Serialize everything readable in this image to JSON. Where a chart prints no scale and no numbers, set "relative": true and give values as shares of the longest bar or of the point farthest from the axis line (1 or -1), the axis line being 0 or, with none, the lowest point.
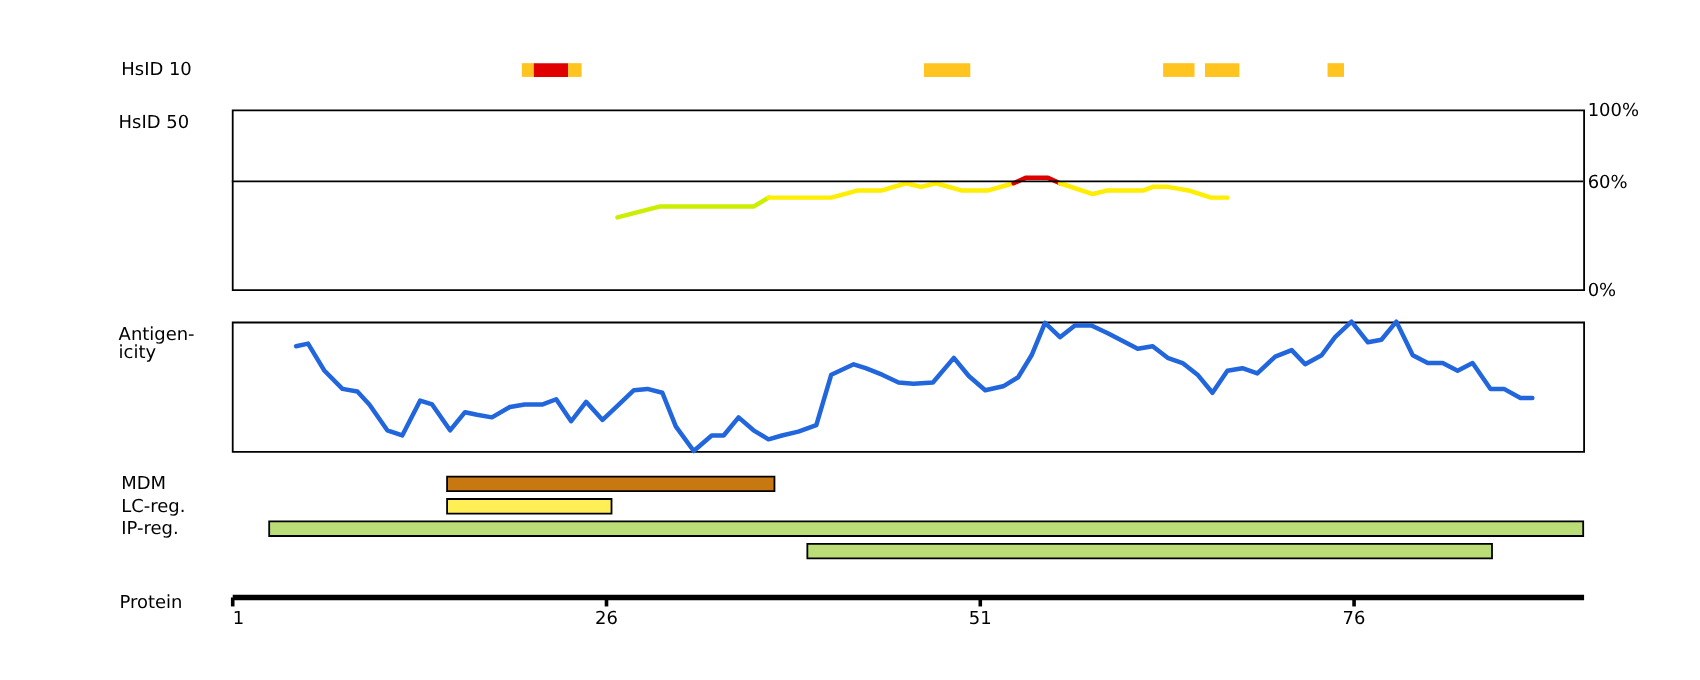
{
  "chart_data": [
    {
      "type": "bar",
      "orientation": "horizontal",
      "categories": [
        "HsID 10"
      ],
      "xlim": [
        1,
        91.4
      ],
      "tick_labels": "y",
      "series": [
        {
          "color": "#ffc420",
          "base": [
            20.4
          ],
          "values": [
            0.8
          ]
        },
        {
          "color": "#e00000",
          "base": [
            21.2
          ],
          "values": [
            2.3
          ]
        },
        {
          "color": "#ffc420",
          "base": [
            23.5
          ],
          "values": [
            0.9
          ]
        },
        {
          "color": "#ffc420",
          "base": [
            47.3
          ],
          "values": [
            3.1
          ]
        },
        {
          "color": "#ffc420",
          "base": [
            63.3
          ],
          "values": [
            2.1
          ]
        },
        {
          "color": "#ffc420",
          "base": [
            66.1
          ],
          "values": [
            2.3
          ]
        },
        {
          "color": "#ffc420",
          "base": [
            74.3
          ],
          "values": [
            1.1
          ]
        }
      ]
    },
    {
      "type": "line",
      "ylabel": "HsID 50",
      "xlim": [
        1,
        91.4
      ],
      "ylim": [
        0,
        100
      ],
      "yticks": [
        {
          "value": 100,
          "label": "100%"
        },
        {
          "value": 60,
          "label": "60%"
        },
        {
          "value": 0,
          "label": "0%"
        }
      ],
      "tick_labels": "y",
      "ref_lines": [
        {
          "axis": "y",
          "value": 60,
          "color": "#000000"
        }
      ],
      "series": [
        {
          "color": "#ccee00",
          "x": [
            26.8,
            29.6,
            35.9,
            36.9
          ],
          "values": [
            40,
            46,
            46,
            51
          ]
        },
        {
          "color": "#ffee00",
          "x": [
            36.9,
            41.1,
            42.9,
            44.5,
            46.1,
            47.1,
            48.1,
            49.8,
            51.6,
            53.3
          ],
          "values": [
            51,
            51,
            55,
            55,
            59,
            57,
            59,
            55,
            55,
            59
          ]
        },
        {
          "color": "#dd0000",
          "x": [
            53.3,
            54.1,
            55.6,
            56.4
          ],
          "values": [
            59,
            62,
            62,
            59
          ]
        },
        {
          "color": "#ffee00",
          "x": [
            56.4,
            58.6,
            59.6,
            62,
            62.6,
            63.6,
            65,
            66.5,
            67.6
          ],
          "values": [
            59,
            53,
            55,
            55,
            57,
            57,
            55,
            51,
            51
          ]
        }
      ]
    },
    {
      "type": "line",
      "ylabel": "Antigen-\nicity",
      "relative": true,
      "xlim": [
        1,
        91.4
      ],
      "tick_labels": false,
      "series": [
        {
          "color": "#2266dd",
          "x": [
            5.3,
            6.1,
            7.2,
            8.4,
            9.4,
            10.2,
            11.4,
            12.4,
            13.6,
            14.4,
            15.6,
            16.6,
            17.4,
            18.4,
            19.6,
            20.6,
            21.8,
            22.7,
            23.7,
            24.7,
            25.8,
            26.9,
            27.9,
            28.8,
            29.8,
            30.7,
            31.9,
            33.1,
            33.9,
            34.9,
            35.9,
            36.9,
            37.8,
            38.9,
            40.1,
            41.1,
            42.6,
            43.4,
            44.5,
            45.6,
            46.6,
            47.9,
            49.3,
            50.3,
            51.4,
            52.6,
            53.6,
            54.5,
            55.4,
            56.4,
            57.4,
            58.5,
            59.6,
            60.6,
            61.6,
            62.6,
            63.6,
            64.6,
            65.6,
            66.6,
            67.6,
            68.6,
            69.6,
            70.8,
            71.9,
            72.8,
            73.9,
            74.8,
            75.9,
            77.0,
            77.9,
            78.9,
            80.0,
            81.0,
            82.0,
            83.0,
            84.0,
            85.2,
            86.1,
            87.2,
            88.0
          ],
          "values": [
            0.81,
            0.83,
            0.62,
            0.48,
            0.46,
            0.36,
            0.16,
            0.12,
            0.39,
            0.36,
            0.16,
            0.3,
            0.28,
            0.26,
            0.34,
            0.36,
            0.36,
            0.4,
            0.23,
            0.38,
            0.24,
            0.36,
            0.47,
            0.48,
            0.45,
            0.19,
            0,
            0.12,
            0.12,
            0.26,
            0.16,
            0.09,
            0.12,
            0.15,
            0.2,
            0.59,
            0.67,
            0.64,
            0.59,
            0.53,
            0.52,
            0.53,
            0.72,
            0.58,
            0.47,
            0.5,
            0.57,
            0.74,
            0.99,
            0.88,
            0.97,
            0.97,
            0.91,
            0.85,
            0.79,
            0.81,
            0.72,
            0.68,
            0.59,
            0.45,
            0.62,
            0.64,
            0.6,
            0.73,
            0.78,
            0.67,
            0.74,
            0.88,
            1,
            0.84,
            0.86,
            1,
            0.74,
            0.68,
            0.68,
            0.62,
            0.68,
            0.48,
            0.48,
            0.41,
            0.41
          ]
        }
      ]
    },
    {
      "type": "bar",
      "orientation": "horizontal",
      "categories": [
        "MDM",
        "LC-reg.",
        "IP-reg.",
        null
      ],
      "xlabel": "Protein",
      "xlim": [
        1,
        91.4
      ],
      "xticks": [
        1,
        26,
        51,
        76
      ],
      "base": [
        15.4,
        15.4,
        3.5,
        39.5
      ],
      "values": [
        21.9,
        11.0,
        87.9,
        45.8
      ],
      "colors": [
        "#c87810",
        "#ffee55",
        "#bbdd77",
        "#bbdd77"
      ]
    }
  ]
}
